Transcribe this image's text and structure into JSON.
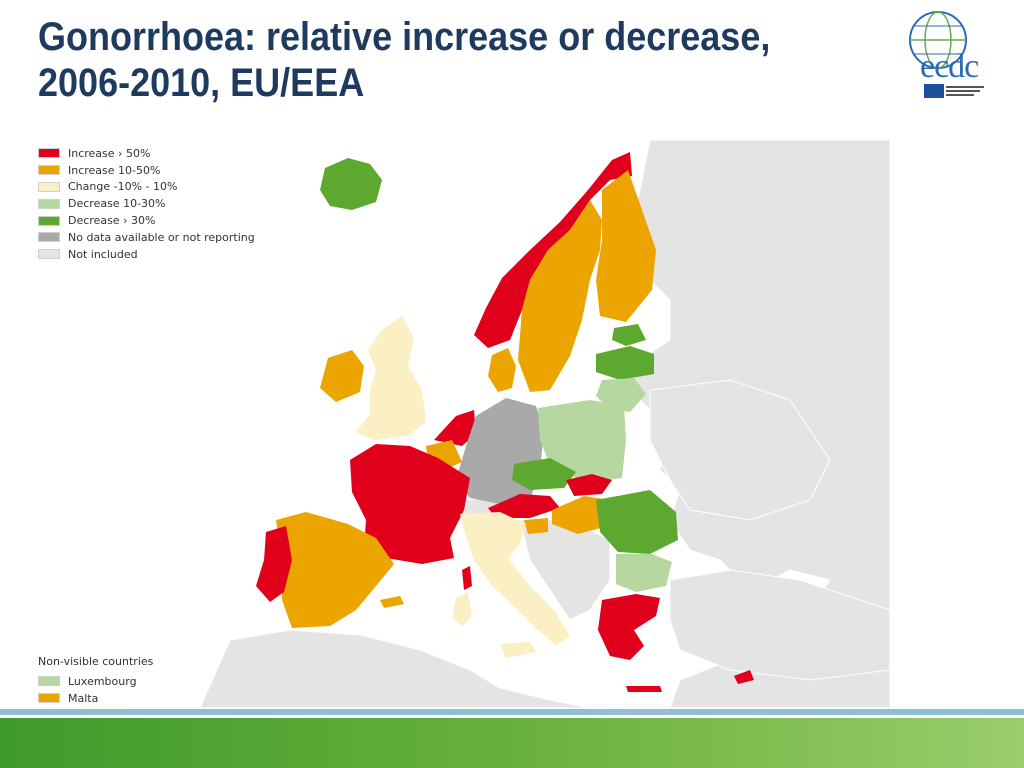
{
  "title": "Gonorrhoea: relative increase or decrease, 2006-2010, EU/EEA",
  "logo_text": "ecdc",
  "colors": {
    "increase_gt_50": "#e0001b",
    "increase_10_50": "#eca400",
    "change_pm10": "#fbf0c3",
    "decrease_10_30": "#b6d7a0",
    "decrease_gt_30": "#5da92f",
    "no_data": "#a9a9a9",
    "not_included": "#e4e4e4",
    "sea": "#ffffff",
    "non_eu": "#f2f2f2"
  },
  "legend": {
    "items": [
      {
        "label": "Increase › 50%",
        "color": "#e0001b"
      },
      {
        "label": "Increase 10-50%",
        "color": "#eca400"
      },
      {
        "label": "Change -10% - 10%",
        "color": "#fbf0c3"
      },
      {
        "label": "Decrease 10-30%",
        "color": "#b6d7a0"
      },
      {
        "label": "Decrease › 30%",
        "color": "#5da92f"
      },
      {
        "label": "No data available or not reporting",
        "color": "#a9a9a9"
      },
      {
        "label": "Not included",
        "color": "#e4e4e4"
      }
    ]
  },
  "non_visible": {
    "title": "Non-visible countries",
    "items": [
      {
        "label": "Luxembourg",
        "color": "#b6d7a0"
      },
      {
        "label": "Malta",
        "color": "#eca400"
      }
    ]
  }
}
